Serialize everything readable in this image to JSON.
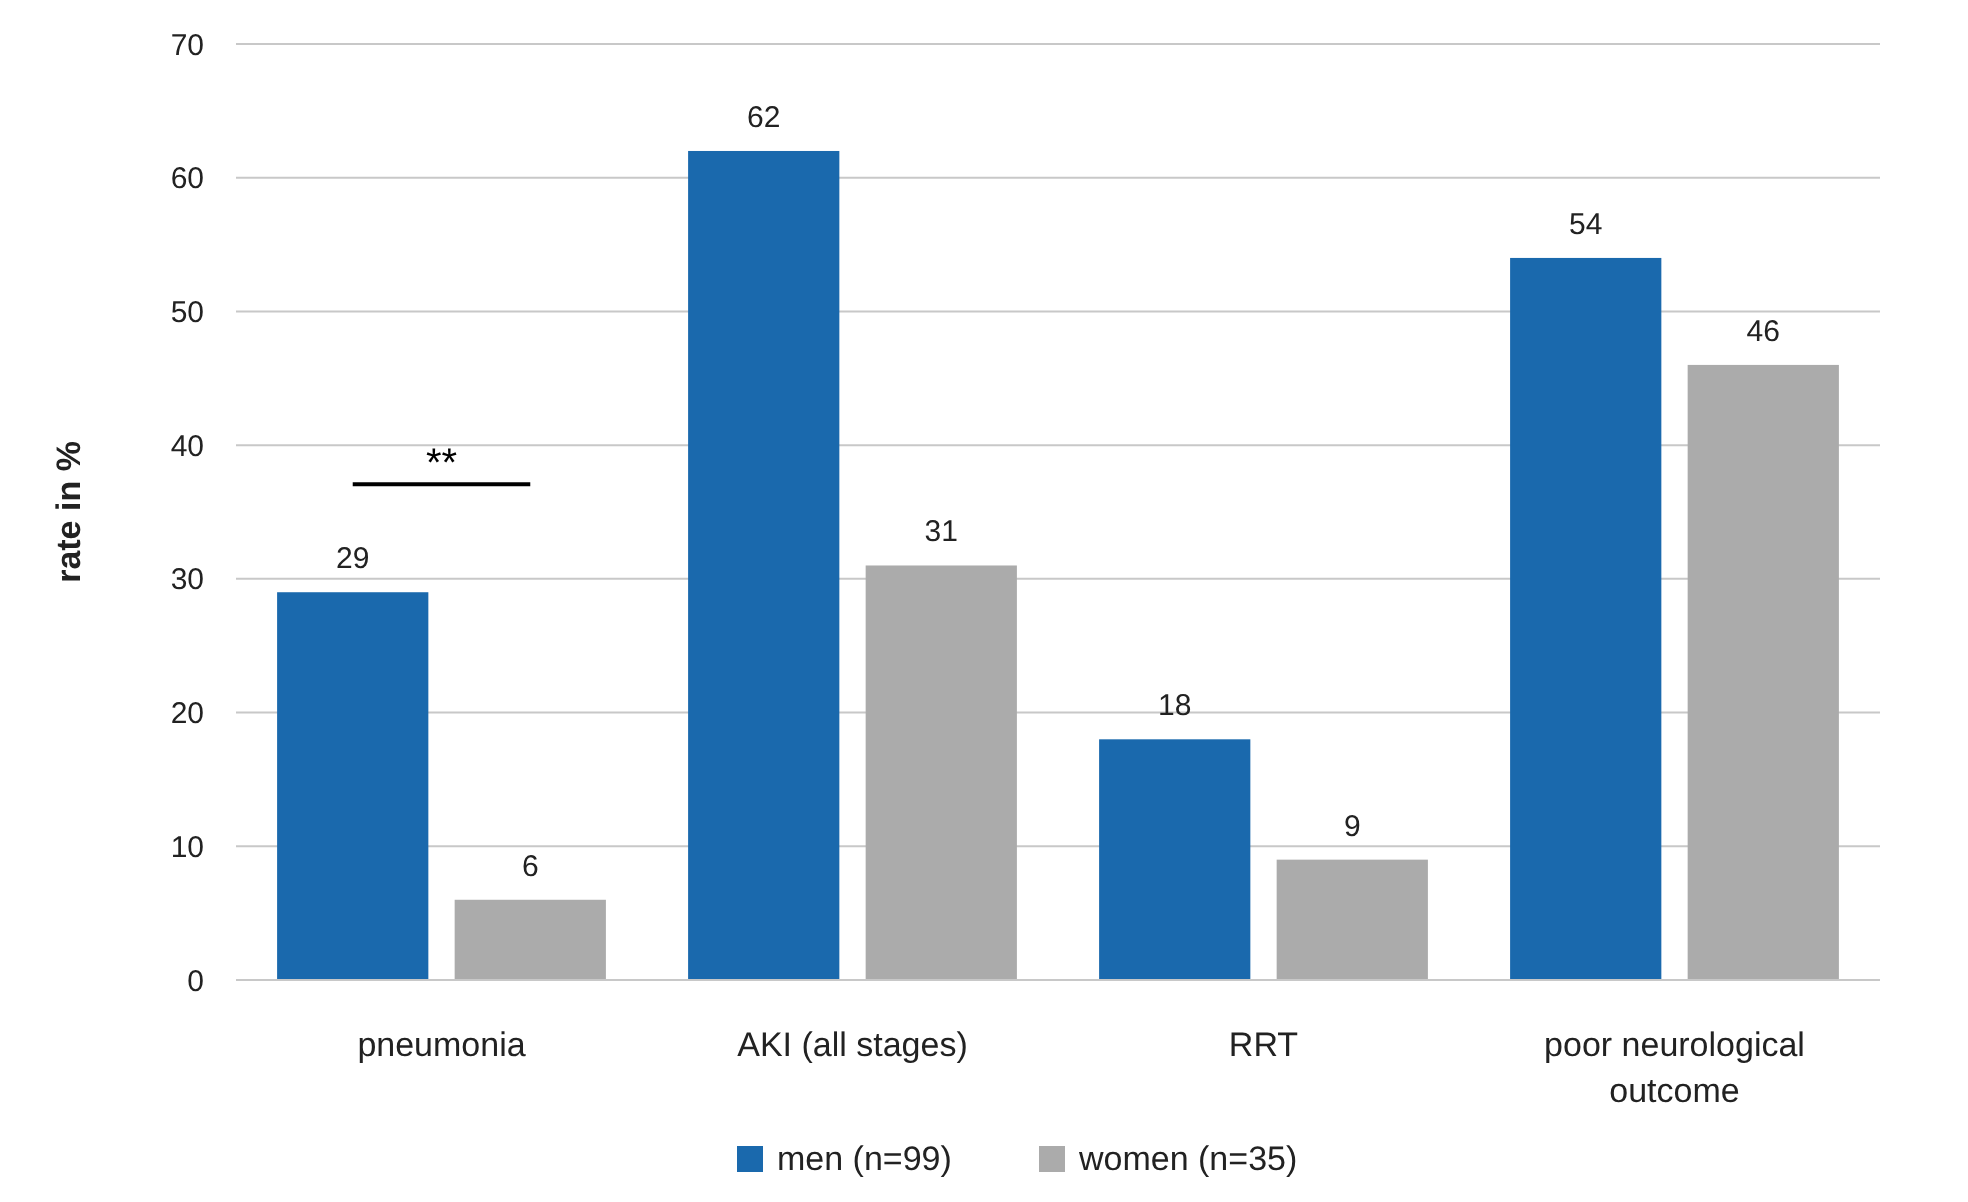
{
  "chart_data": {
    "type": "bar",
    "ylabel": "rate in %",
    "categories": [
      "pneumonia",
      "AKI (all stages)",
      "RRT",
      "poor neurological outcome"
    ],
    "series": [
      {
        "name": "men (n=99)",
        "color": "#1a69ad",
        "values": [
          29,
          62,
          18,
          54
        ]
      },
      {
        "name": "women (n=35)",
        "color": "#ababab",
        "values": [
          6,
          31,
          9,
          46
        ]
      }
    ],
    "ylim": [
      0,
      70
    ],
    "yticks": [
      0,
      10,
      20,
      30,
      40,
      50,
      60,
      70
    ],
    "grid": "y",
    "legend": "bottom",
    "data_labels": true,
    "annotations": [
      "**"
    ]
  }
}
